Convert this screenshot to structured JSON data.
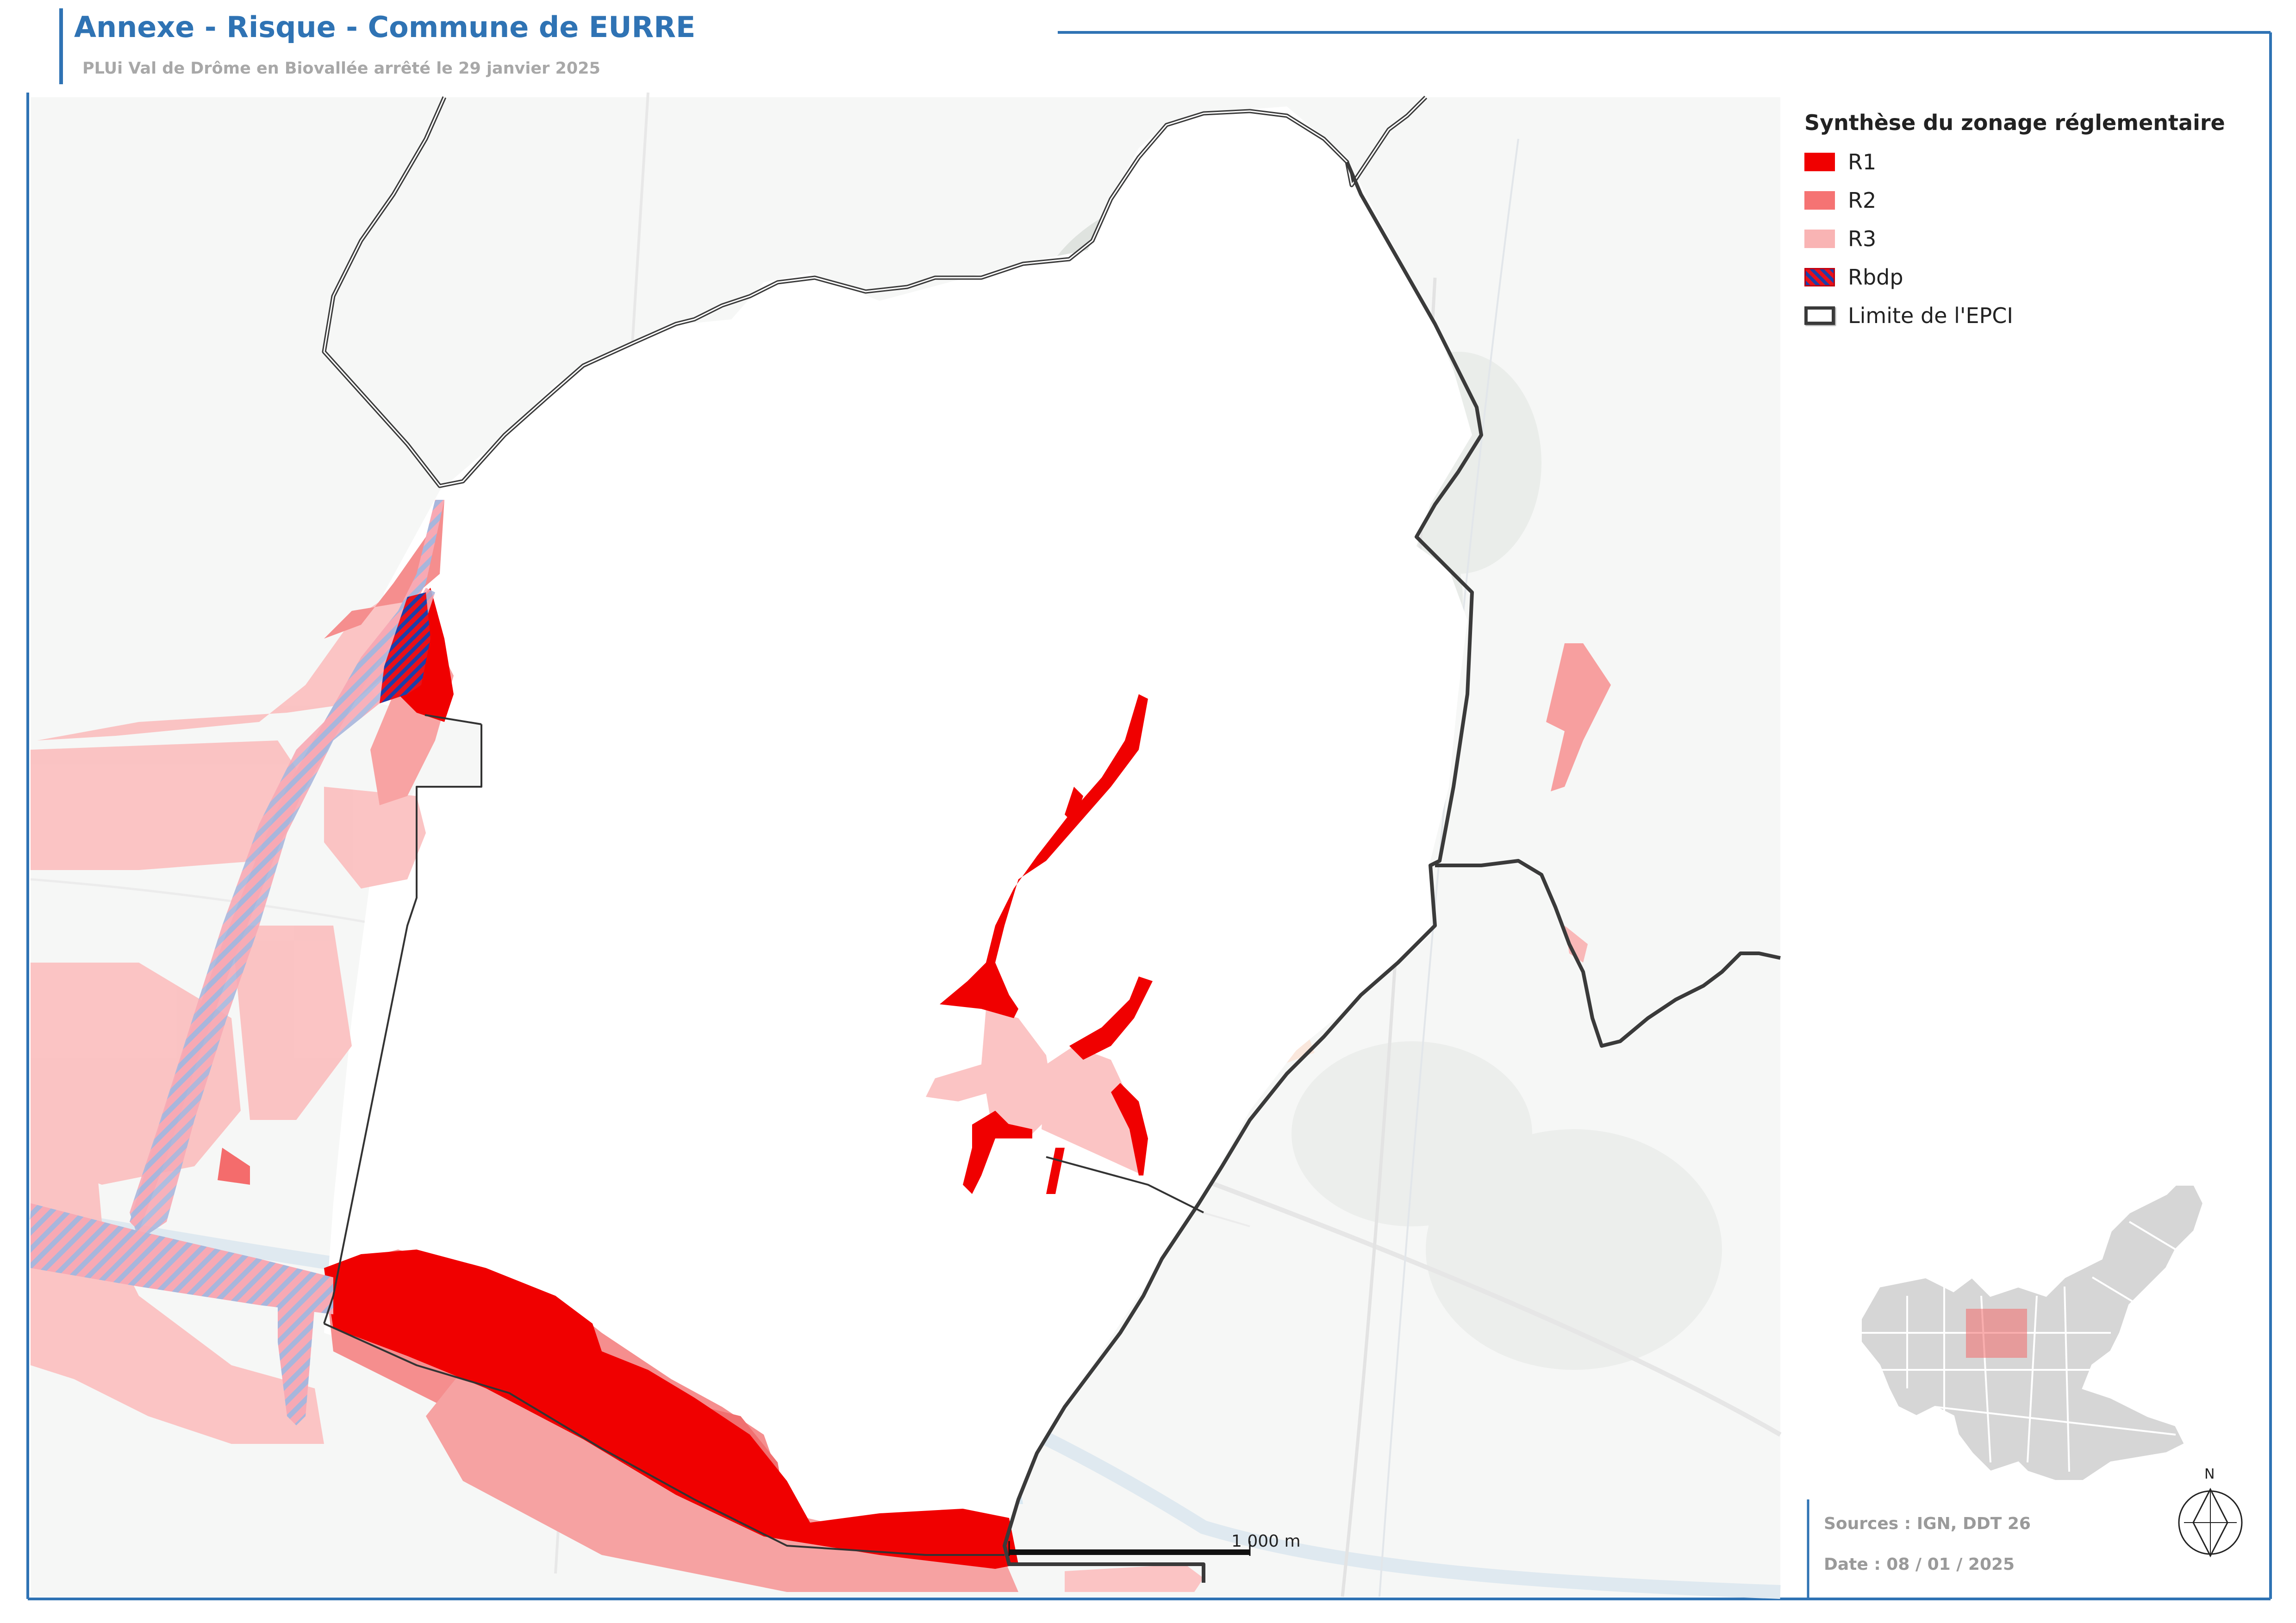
{
  "header": {
    "title": "Annexe - Risque - Commune de EURRE",
    "subtitle": "PLUi Val de Drôme en Biovallée arrêté le 29 janvier 2025"
  },
  "legend": {
    "title": "Synthèse du zonage réglementaire",
    "items": [
      {
        "id": "r1",
        "label": "R1",
        "color": "#f00000"
      },
      {
        "id": "r2",
        "label": "R2",
        "color": "#f57373"
      },
      {
        "id": "r3",
        "label": "R3",
        "color": "#f9b4b4"
      },
      {
        "id": "rbdp",
        "label": "Rbdp",
        "color": "#e8101a"
      },
      {
        "id": "epci",
        "label": "Limite de l'EPCI",
        "color": "#3a3a3a"
      }
    ]
  },
  "scale_bar": {
    "label": "1 000 m"
  },
  "north_arrow": {
    "label": "N"
  },
  "footer": {
    "sources": "Sources : IGN, DDT 26",
    "date": "Date : 08 / 01 / 2025"
  },
  "colors": {
    "accent": "#2f73b4",
    "frame": "#2f73b4",
    "epci_boundary": "#3a3a3a",
    "locator_fill": "#d6d6d6"
  }
}
